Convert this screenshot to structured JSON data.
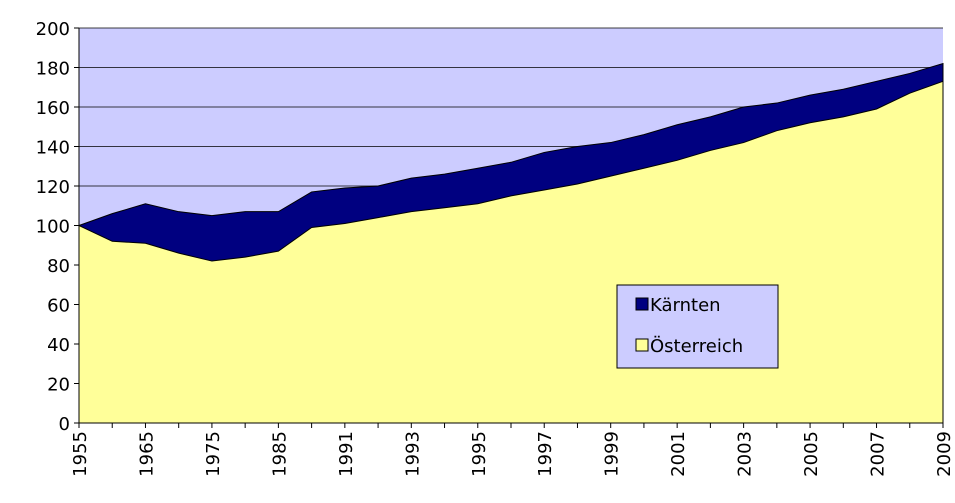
{
  "chart_data": {
    "type": "area",
    "categories": [
      1955,
      null,
      1965,
      null,
      1975,
      null,
      1985,
      null,
      1991,
      null,
      1993,
      null,
      1995,
      null,
      1997,
      null,
      1999,
      null,
      2001,
      null,
      2003,
      null,
      2005,
      null,
      2007,
      null,
      2009
    ],
    "series": [
      {
        "name": "Kärnten",
        "color": "#000080",
        "values": [
          100,
          106,
          111,
          107,
          105,
          107,
          107,
          117,
          119,
          120,
          124,
          126,
          129,
          132,
          137,
          140,
          142,
          146,
          151,
          155,
          160,
          162,
          166,
          169,
          173,
          177,
          182
        ]
      },
      {
        "name": "Österreich",
        "color": "#ffff99",
        "values": [
          100,
          92,
          91,
          86,
          82,
          84,
          87,
          99,
          101,
          104,
          107,
          109,
          111,
          115,
          118,
          121,
          125,
          129,
          133,
          138,
          142,
          148,
          152,
          155,
          159,
          167,
          173
        ]
      }
    ],
    "ylim": [
      0,
      200
    ],
    "yticks": [
      0,
      20,
      40,
      60,
      80,
      100,
      120,
      140,
      160,
      180,
      200
    ],
    "grid": true,
    "plot_background": "#ccccff",
    "legend": "inside"
  }
}
